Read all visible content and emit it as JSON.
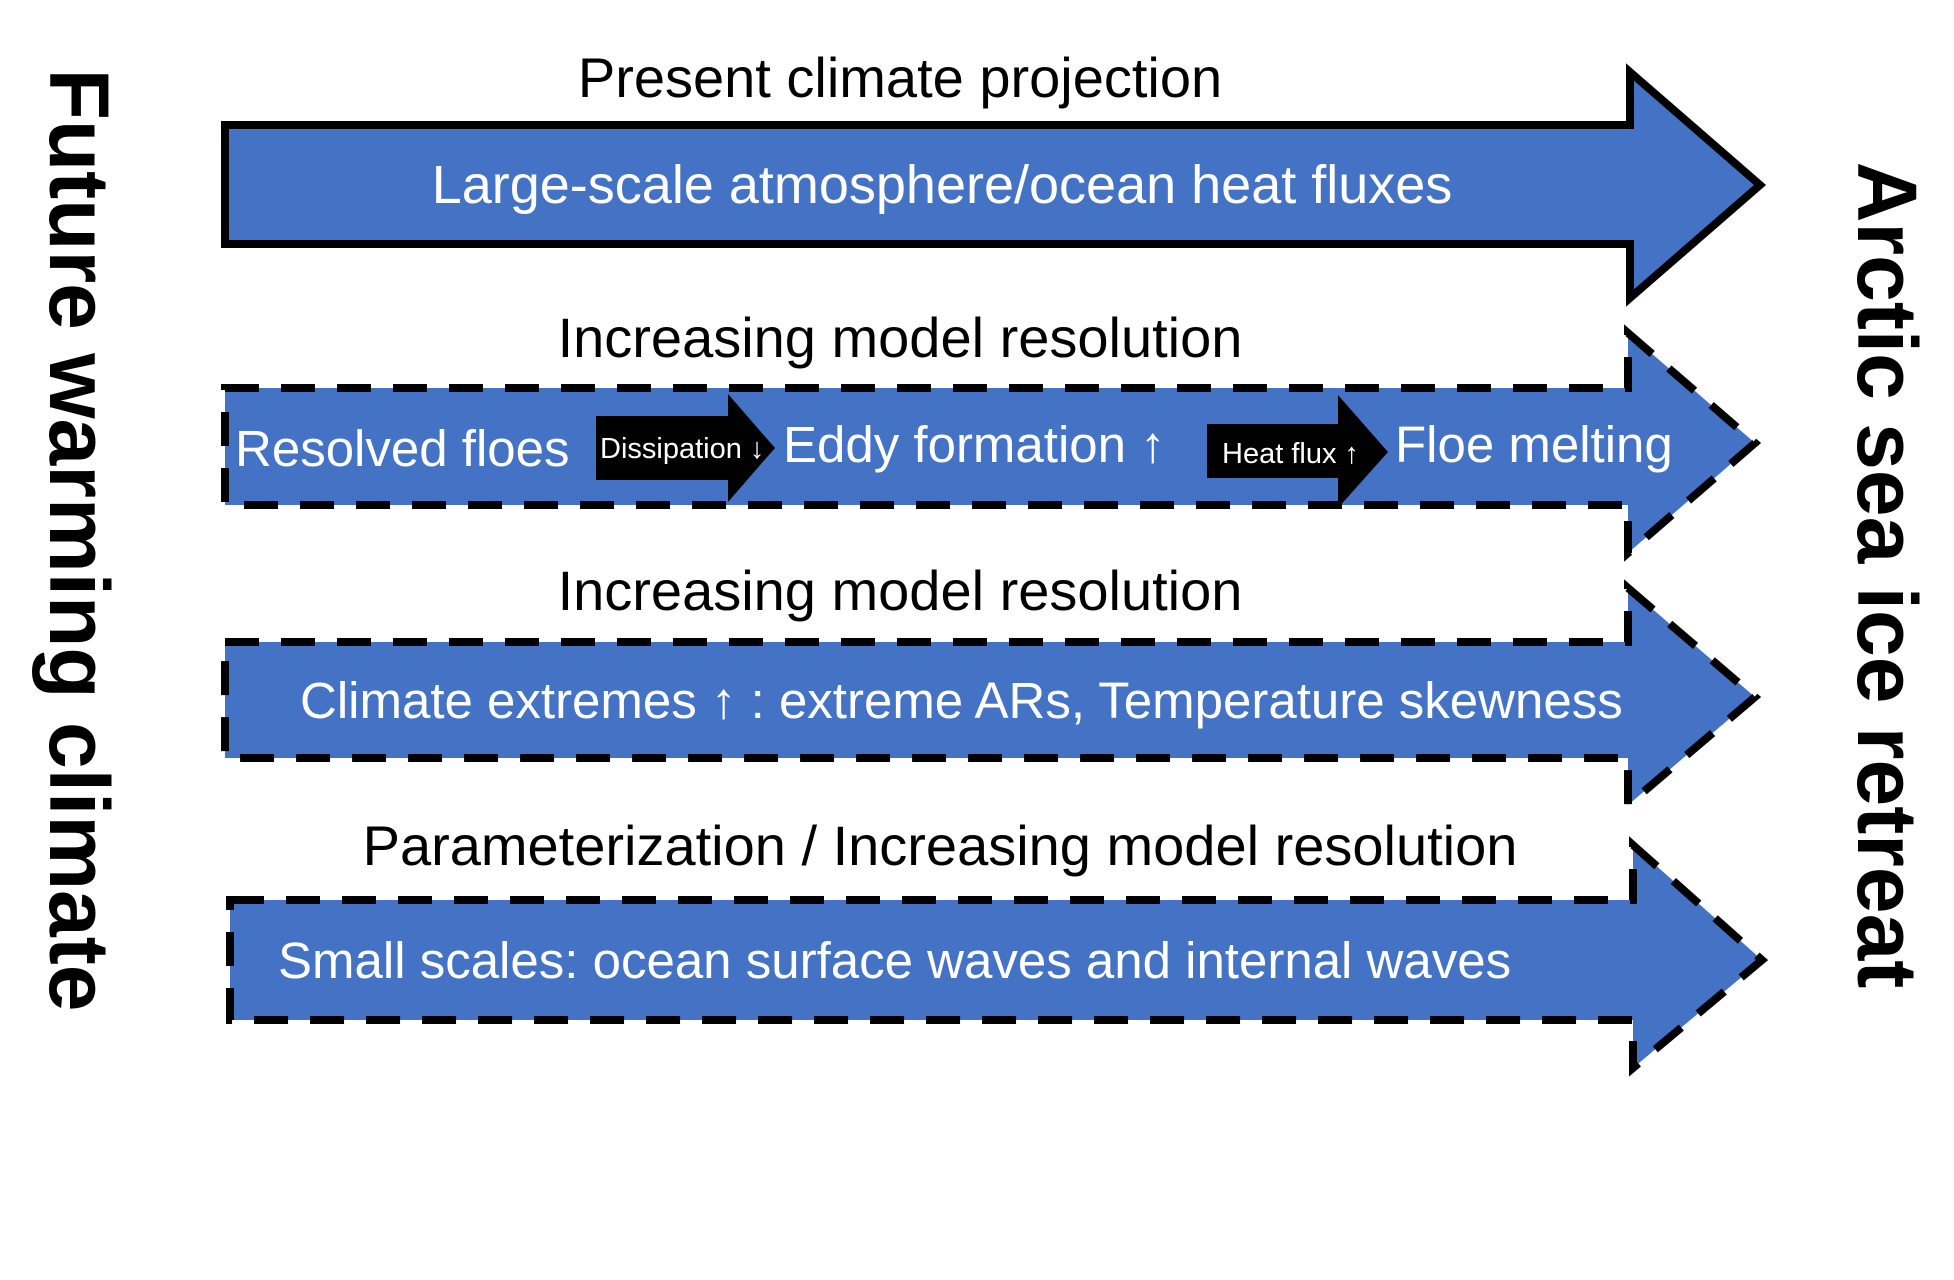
{
  "colors": {
    "arrow_fill": "#4472C4",
    "outline": "#000000",
    "background": "#FFFFFF"
  },
  "side_labels": {
    "left": "Future warming climate",
    "right": "Arctic sea ice retreat"
  },
  "rows": [
    {
      "heading": "Present climate projection",
      "arrow_text": "Large-scale atmosphere/ocean heat fluxes",
      "border": "solid"
    },
    {
      "heading": "Increasing model resolution",
      "border": "dashed",
      "chain": {
        "step1": "Resolved floes",
        "link1": "Dissipation ↓",
        "step2": "Eddy formation ↑",
        "link2": "Heat flux ↑",
        "step3": "Floe melting"
      }
    },
    {
      "heading": "Increasing model resolution",
      "arrow_text": "Climate extremes ↑ : extreme ARs, Temperature skewness",
      "border": "dashed"
    },
    {
      "heading": "Parameterization / Increasing model resolution",
      "arrow_text": "Small scales: ocean surface waves and internal waves",
      "border": "dashed"
    }
  ]
}
